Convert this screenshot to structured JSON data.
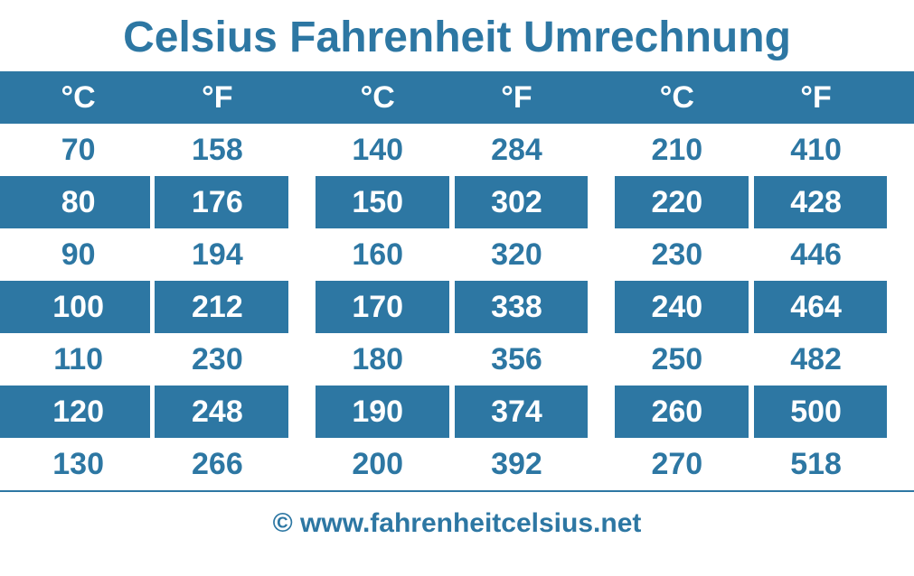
{
  "title": "Celsius Fahrenheit Umrechnung",
  "title_color": "#2d77a3",
  "title_fontsize": 48,
  "footer": "© www.fahrenheitcelsius.net",
  "footer_color": "#2d77a3",
  "footer_fontsize": 30,
  "header_bg": "#2d77a3",
  "header_fg": "#ffffff",
  "row_even_bg": "#2d77a3",
  "row_even_fg": "#ffffff",
  "row_odd_bg": "#ffffff",
  "row_odd_fg": "#2d77a3",
  "gap_bg": "#ffffff",
  "cell_fontsize": 34,
  "divider_color": "#2d77a3",
  "columns": [
    {
      "c_label": "°C",
      "f_label": "°F"
    },
    {
      "c_label": "°C",
      "f_label": "°F"
    },
    {
      "c_label": "°C",
      "f_label": "°F"
    }
  ],
  "leading_gap_width": 18,
  "c_col_width": 150,
  "f_col_width": 150,
  "middle_gap_width": 30,
  "trailing_gap_width": 30,
  "rows": [
    [
      {
        "c": 70,
        "f": 158
      },
      {
        "c": 140,
        "f": 284
      },
      {
        "c": 210,
        "f": 410
      }
    ],
    [
      {
        "c": 80,
        "f": 176
      },
      {
        "c": 150,
        "f": 302
      },
      {
        "c": 220,
        "f": 428
      }
    ],
    [
      {
        "c": 90,
        "f": 194
      },
      {
        "c": 160,
        "f": 320
      },
      {
        "c": 230,
        "f": 446
      }
    ],
    [
      {
        "c": 100,
        "f": 212
      },
      {
        "c": 170,
        "f": 338
      },
      {
        "c": 240,
        "f": 464
      }
    ],
    [
      {
        "c": 110,
        "f": 230
      },
      {
        "c": 180,
        "f": 356
      },
      {
        "c": 250,
        "f": 482
      }
    ],
    [
      {
        "c": 120,
        "f": 248
      },
      {
        "c": 190,
        "f": 374
      },
      {
        "c": 260,
        "f": 500
      }
    ],
    [
      {
        "c": 130,
        "f": 266
      },
      {
        "c": 200,
        "f": 392
      },
      {
        "c": 270,
        "f": 518
      }
    ]
  ]
}
